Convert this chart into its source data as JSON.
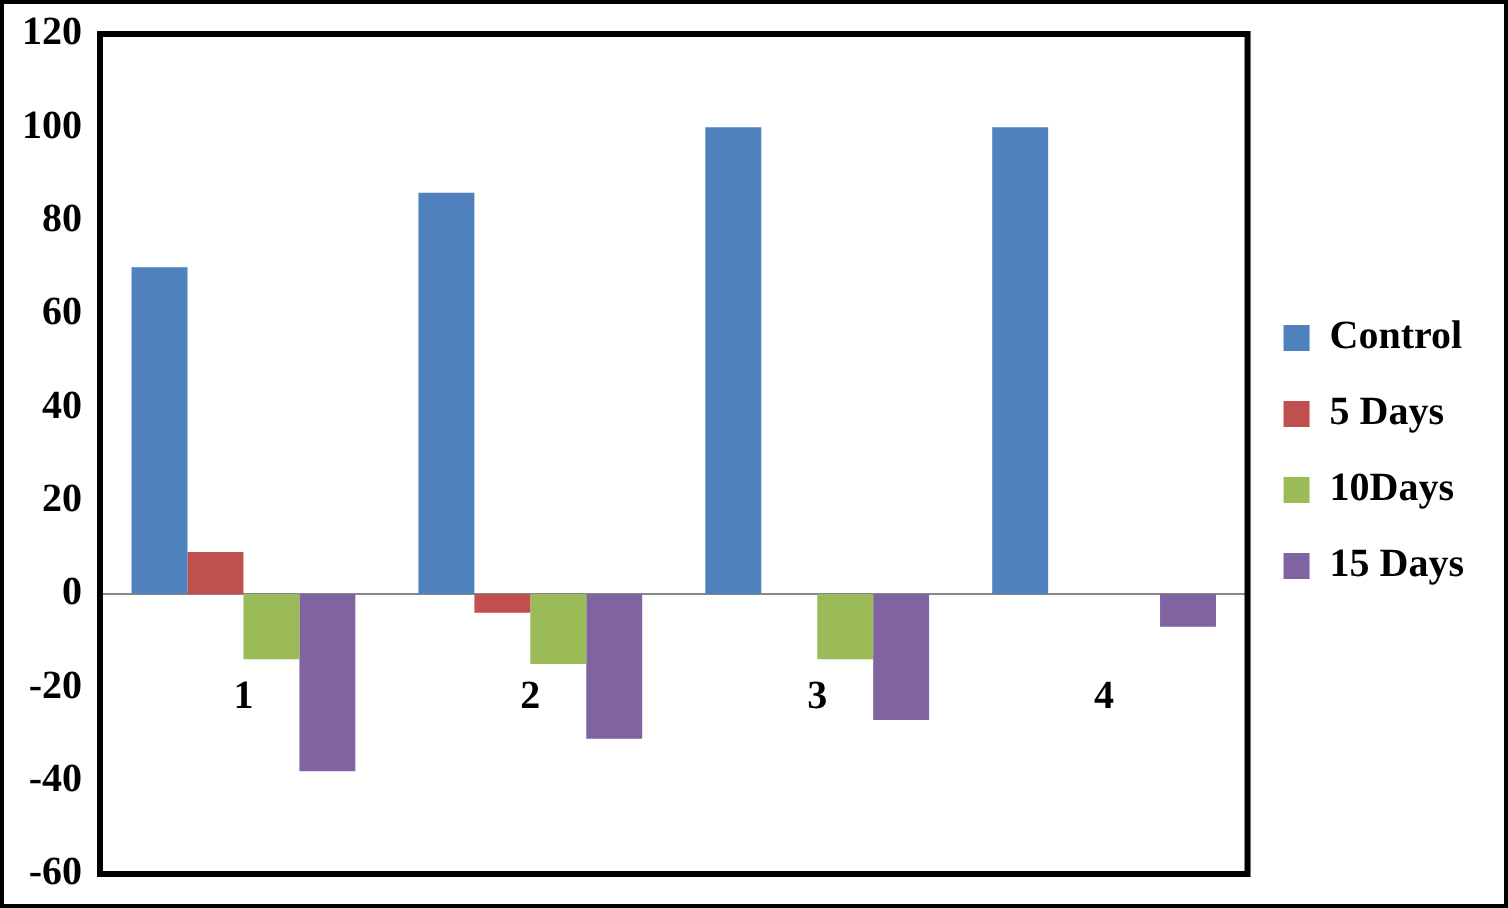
{
  "chart_data": {
    "type": "bar",
    "categories": [
      "1",
      "2",
      "3",
      "4"
    ],
    "series": [
      {
        "name": "Control",
        "color": "#4f81bd",
        "values": [
          70,
          86,
          100,
          100
        ]
      },
      {
        "name": "5 Days",
        "color": "#c0504d",
        "values": [
          9,
          -4,
          0,
          0
        ]
      },
      {
        "name": "10Days",
        "color": "#9bbb59",
        "values": [
          -14,
          -15,
          -14,
          0
        ]
      },
      {
        "name": "15 Days",
        "color": "#8064a2",
        "values": [
          -38,
          -31,
          -27,
          -7
        ]
      }
    ],
    "ylim": [
      -60,
      120
    ],
    "yticks": [
      -60,
      -40,
      -20,
      0,
      20,
      40,
      60,
      80,
      100,
      120
    ],
    "grid": false,
    "legend": "right"
  }
}
